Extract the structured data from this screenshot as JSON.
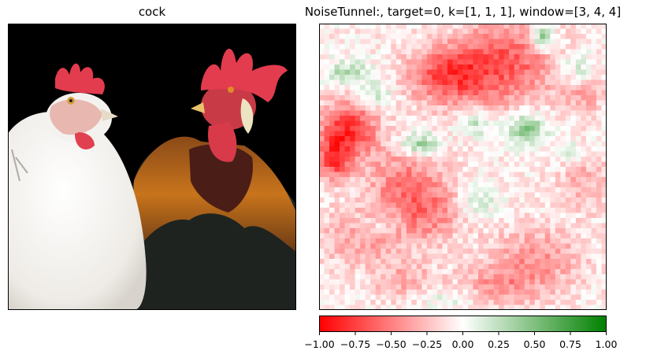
{
  "left_panel": {
    "title": "cock"
  },
  "right_panel": {
    "title": "NoiseTunnel:, target=0, k=[1, 1, 1], window=[3, 4, 4]"
  },
  "colors": {
    "negative": "#ff0000",
    "zero": "#ffffff",
    "positive": "#008000",
    "photo_background": "#000000",
    "hen_white": "#f4f2ef",
    "comb_red": "#e23c4e",
    "rooster_orange": "#c8741c",
    "rooster_dark": "#1e2320"
  },
  "chart_data": {
    "type": "heatmap",
    "title": "NoiseTunnel:, target=0, k=[1, 1, 1], window=[3, 4, 4]",
    "grid_size": [
      56,
      56
    ],
    "value_range": [
      -1.0,
      1.0
    ],
    "colormap": [
      "#ff0000",
      "#ffffff",
      "#008000"
    ],
    "colorbar": {
      "ticks": [
        -1.0,
        -0.75,
        -0.5,
        -0.25,
        0.0,
        0.25,
        0.5,
        0.75,
        1.0
      ],
      "tick_labels": [
        "−1.00",
        "−0.75",
        "−0.50",
        "−0.25",
        "0.00",
        "0.25",
        "0.50",
        "0.75",
        "1.00"
      ]
    },
    "blobs": [
      {
        "cx": 0.45,
        "cy": 0.18,
        "sx": 0.1,
        "sy": 0.07,
        "v": -0.65
      },
      {
        "cx": 0.66,
        "cy": 0.13,
        "sx": 0.12,
        "sy": 0.11,
        "v": -0.55
      },
      {
        "cx": 0.1,
        "cy": 0.37,
        "sx": 0.07,
        "sy": 0.07,
        "v": -0.75
      },
      {
        "cx": 0.05,
        "cy": 0.48,
        "sx": 0.04,
        "sy": 0.05,
        "v": -0.6
      },
      {
        "cx": 0.3,
        "cy": 0.55,
        "sx": 0.1,
        "sy": 0.09,
        "v": -0.4
      },
      {
        "cx": 0.38,
        "cy": 0.66,
        "sx": 0.09,
        "sy": 0.07,
        "v": -0.35
      },
      {
        "cx": 0.15,
        "cy": 0.75,
        "sx": 0.12,
        "sy": 0.07,
        "v": -0.3
      },
      {
        "cx": 0.75,
        "cy": 0.82,
        "sx": 0.12,
        "sy": 0.08,
        "v": -0.35
      },
      {
        "cx": 0.62,
        "cy": 0.92,
        "sx": 0.1,
        "sy": 0.05,
        "v": -0.3
      },
      {
        "cx": 0.92,
        "cy": 0.55,
        "sx": 0.06,
        "sy": 0.07,
        "v": -0.25
      },
      {
        "cx": 0.92,
        "cy": 0.25,
        "sx": 0.05,
        "sy": 0.05,
        "v": -0.25
      },
      {
        "cx": 0.3,
        "cy": 0.9,
        "sx": 0.08,
        "sy": 0.05,
        "v": -0.25
      },
      {
        "cx": 0.78,
        "cy": 0.05,
        "sx": 0.03,
        "sy": 0.03,
        "v": 0.7
      },
      {
        "cx": 0.72,
        "cy": 0.37,
        "sx": 0.05,
        "sy": 0.04,
        "v": 0.55
      },
      {
        "cx": 0.35,
        "cy": 0.42,
        "sx": 0.05,
        "sy": 0.03,
        "v": 0.5
      },
      {
        "cx": 0.1,
        "cy": 0.17,
        "sx": 0.06,
        "sy": 0.03,
        "v": 0.35
      },
      {
        "cx": 0.55,
        "cy": 0.35,
        "sx": 0.04,
        "sy": 0.03,
        "v": 0.35
      },
      {
        "cx": 0.9,
        "cy": 0.15,
        "sx": 0.04,
        "sy": 0.04,
        "v": 0.3
      },
      {
        "cx": 0.55,
        "cy": 0.62,
        "sx": 0.05,
        "sy": 0.04,
        "v": 0.3
      },
      {
        "cx": 0.22,
        "cy": 0.7,
        "sx": 0.05,
        "sy": 0.03,
        "v": 0.25
      },
      {
        "cx": 0.2,
        "cy": 0.25,
        "sx": 0.04,
        "sy": 0.03,
        "v": 0.35
      },
      {
        "cx": 0.45,
        "cy": 0.96,
        "sx": 0.08,
        "sy": 0.03,
        "v": 0.2
      },
      {
        "cx": 0.88,
        "cy": 0.45,
        "sx": 0.03,
        "sy": 0.03,
        "v": 0.2
      }
    ]
  }
}
